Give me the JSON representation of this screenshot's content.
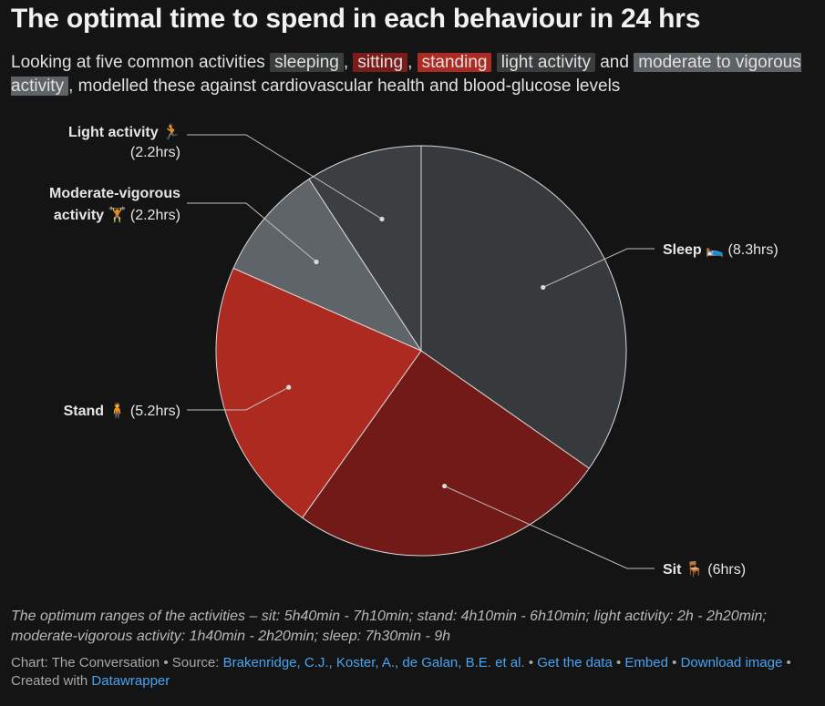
{
  "title": "The optimal time to spend in each behaviour in 24 hrs",
  "subtitle": {
    "intro": "Looking at five common activities",
    "sleeping": "sleeping",
    "sep1": ",",
    "sitting": "sitting",
    "sep2": ",",
    "standing": "standing",
    "light": "light activity",
    "and": "and",
    "moderate": "moderate to vigorous activity",
    "outro": ", modelled these against cardiovascular health and blood-glucose levels"
  },
  "chart_data": {
    "type": "pie",
    "unit": "hrs",
    "slices": [
      {
        "name": "Sleep",
        "icon": "🛌",
        "value": 8.3,
        "value_label": "(8.3hrs)",
        "color": "#363a3c"
      },
      {
        "name": "Sit",
        "icon": "🪑",
        "value": 6.0,
        "value_label": "(6hrs)",
        "color": "#721a17"
      },
      {
        "name": "Stand",
        "icon": "🧍",
        "value": 5.2,
        "value_label": "(5.2hrs)",
        "color": "#ad2a20"
      },
      {
        "name": "Moderate-vigorous activity",
        "name_line1": "Moderate-vigorous",
        "name_line2": "activity",
        "icon": "🏋",
        "value": 2.2,
        "value_label": "(2.2hrs)",
        "color": "#5e6468"
      },
      {
        "name": "Light activity",
        "icon": "🏃",
        "value": 2.2,
        "value_label": "(2.2hrs)",
        "color": "#3b3f41"
      }
    ]
  },
  "note": "The optimum ranges of the activities – sit: 5h40min - 7h10min; stand: 4h10min - 6h10min; light activity: 2h - 2h20min; moderate-vigorous activity: 1h40min - 2h20min; sleep: 7h30min - 9h",
  "footer": {
    "chart_by": "Chart: The Conversation",
    "source_prefix": "Source:",
    "source_link": "Brakenridge, C.J., Koster, A., de Galan, B.E. et al.",
    "get_data": "Get the data",
    "embed": "Embed",
    "download": "Download image",
    "created_with": "Created with",
    "datawrapper": "Datawrapper",
    "sep": "•"
  }
}
